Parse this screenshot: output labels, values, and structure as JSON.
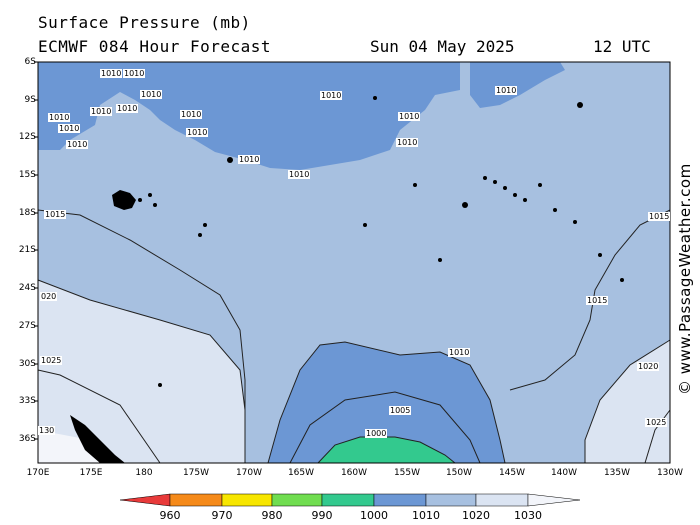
{
  "header": {
    "title": "Surface Pressure (mb)",
    "subtitle": "ECMWF 084 Hour Forecast",
    "date": "Sun 04 May 2025",
    "time": "12 UTC"
  },
  "copyright": "© www.PassageWeather.com",
  "map": {
    "lat_labels": [
      "6S",
      "9S",
      "12S",
      "15S",
      "18S",
      "21S",
      "24S",
      "27S",
      "30S",
      "33S",
      "36S"
    ],
    "lon_labels": [
      "170E",
      "175E",
      "180",
      "175W",
      "170W",
      "165W",
      "160W",
      "155W",
      "150W",
      "145W",
      "140W",
      "135W",
      "130W"
    ],
    "contour_labels": {
      "l1010_a": "1010",
      "l1010_b": "1010",
      "l1010_c": "1010",
      "l1010_d": "1010",
      "l1010_e": "1010",
      "l1010_f": "1010",
      "l1010_g": "1010",
      "l1010_h": "1010",
      "l1010_i": "1010",
      "l1010_j": "1010",
      "l1010_k": "1010",
      "l1010_l": "1010",
      "l1010_m": "1010",
      "l1010_n": "1010",
      "l1010_o": "1010",
      "l1010_p": "1010",
      "l1015_w": "1015",
      "l1015_e": "1015",
      "l1020_w": "020",
      "l1020_e": "1020",
      "l1025_w": "1025",
      "l1025_e": "1025",
      "l1030_w": "130",
      "l1010_s": "1010",
      "l1005": "1005",
      "l1000": "1000"
    },
    "colors": {
      "lt1000": "#33c98e",
      "p1000_1010": "#6c97d4",
      "p1010_1020": "#a7c0e0",
      "p1020_1030": "#dbe4f2",
      "gt1030": "#f3f5fa",
      "land": "#000000"
    }
  },
  "legend": {
    "labels": [
      "960",
      "970",
      "980",
      "990",
      "1000",
      "1010",
      "1020",
      "1030"
    ],
    "colors": [
      "#e83a3a",
      "#f58a1a",
      "#f7e600",
      "#70dd50",
      "#33c98e",
      "#6c97d4",
      "#a7c0e0",
      "#dbe4f2",
      "#f3f5fa"
    ]
  }
}
